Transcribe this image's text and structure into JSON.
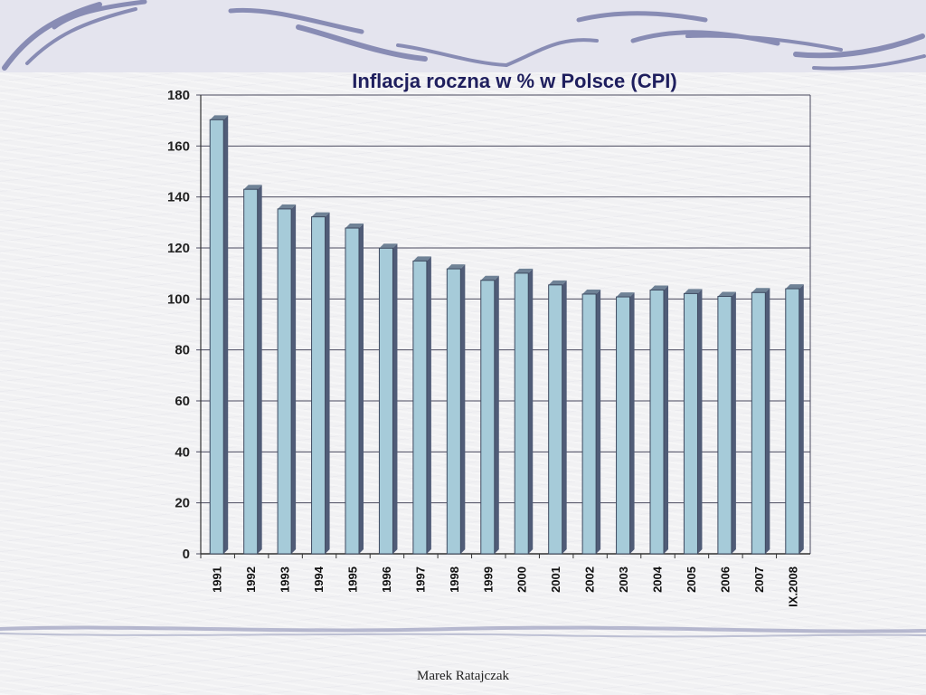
{
  "footer": {
    "author": "Marek Ratajczak"
  },
  "chart_data": {
    "type": "bar",
    "title": "Inflacja roczna w % w Polsce (CPI)",
    "xlabel": "",
    "ylabel": "",
    "ylim": [
      0,
      180
    ],
    "ytick_step": 20,
    "grid": true,
    "legend": "none",
    "categories": [
      "1991",
      "1992",
      "1993",
      "1994",
      "1995",
      "1996",
      "1997",
      "1998",
      "1999",
      "2000",
      "2001",
      "2002",
      "2003",
      "2004",
      "2005",
      "2006",
      "2007",
      "IX.2008"
    ],
    "values": [
      170.3,
      143.0,
      135.3,
      132.2,
      127.8,
      119.9,
      114.9,
      111.8,
      107.3,
      110.1,
      105.5,
      101.9,
      100.8,
      103.5,
      102.1,
      101.0,
      102.5,
      104.0
    ],
    "colors": {
      "bar_front": "#a6cbd9",
      "bar_side": "#505c77",
      "bar_top": "#6f8296",
      "grid": "#4b4b5f",
      "title": "#1f1f5e"
    }
  }
}
